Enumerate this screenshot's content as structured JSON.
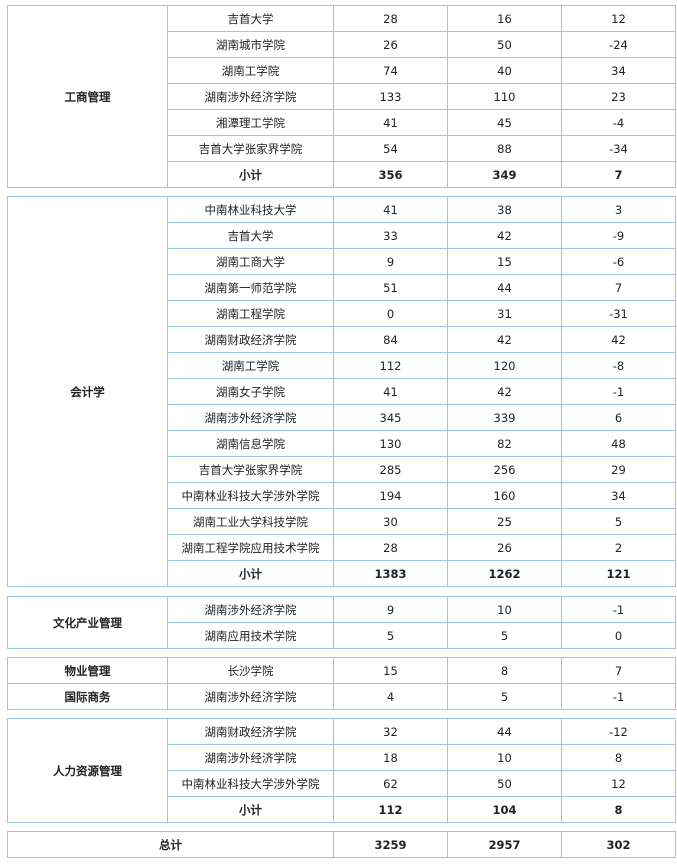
{
  "groups": [
    {
      "major": "工商管理",
      "rows": [
        [
          "吉首大学",
          "28",
          "16",
          "12"
        ],
        [
          "湖南城市学院",
          "26",
          "50",
          "-24"
        ],
        [
          "湖南工学院",
          "74",
          "40",
          "34"
        ],
        [
          "湖南涉外经济学院",
          "133",
          "110",
          "23"
        ],
        [
          "湘潭理工学院",
          "41",
          "45",
          "-4"
        ],
        [
          "吉首大学张家界学院",
          "54",
          "88",
          "-34"
        ]
      ],
      "subtotal": [
        "小计",
        "356",
        "349",
        "7"
      ]
    },
    {
      "major": "会计学",
      "rows": [
        [
          "中南林业科技大学",
          "41",
          "38",
          "3"
        ],
        [
          "吉首大学",
          "33",
          "42",
          "-9"
        ],
        [
          "湖南工商大学",
          "9",
          "15",
          "-6"
        ],
        [
          "湖南第一师范学院",
          "51",
          "44",
          "7"
        ],
        [
          "湖南工程学院",
          "0",
          "31",
          "-31"
        ],
        [
          "湖南财政经济学院",
          "84",
          "42",
          "42"
        ],
        [
          "湖南工学院",
          "112",
          "120",
          "-8"
        ],
        [
          "湖南女子学院",
          "41",
          "42",
          "-1"
        ],
        [
          "湖南涉外经济学院",
          "345",
          "339",
          "6"
        ],
        [
          "湖南信息学院",
          "130",
          "82",
          "48"
        ],
        [
          "吉首大学张家界学院",
          "285",
          "256",
          "29"
        ],
        [
          "中南林业科技大学涉外学院",
          "194",
          "160",
          "34"
        ],
        [
          "湖南工业大学科技学院",
          "30",
          "25",
          "5"
        ],
        [
          "湖南工程学院应用技术学院",
          "28",
          "26",
          "2"
        ]
      ],
      "subtotal": [
        "小计",
        "1383",
        "1262",
        "121"
      ]
    },
    {
      "major": "文化产业管理",
      "rows": [
        [
          "湖南涉外经济学院",
          "9",
          "10",
          "-1"
        ],
        [
          "湖南应用技术学院",
          "5",
          "5",
          "0"
        ]
      ]
    },
    {
      "multi": [
        {
          "major": "物业管理",
          "rows": [
            [
              "长沙学院",
              "15",
              "8",
              "7"
            ]
          ]
        },
        {
          "major": "国际商务",
          "rows": [
            [
              "湖南涉外经济学院",
              "4",
              "5",
              "-1"
            ]
          ]
        }
      ]
    },
    {
      "major": "人力资源管理",
      "rows": [
        [
          "湖南财政经济学院",
          "32",
          "44",
          "-12"
        ],
        [
          "湖南涉外经济学院",
          "18",
          "10",
          "8"
        ],
        [
          "中南林业科技大学涉外学院",
          "62",
          "50",
          "12"
        ]
      ],
      "subtotal": [
        "小计",
        "112",
        "104",
        "8"
      ]
    }
  ],
  "total": {
    "label": "总计",
    "values": [
      "3259",
      "2957",
      "302"
    ]
  }
}
